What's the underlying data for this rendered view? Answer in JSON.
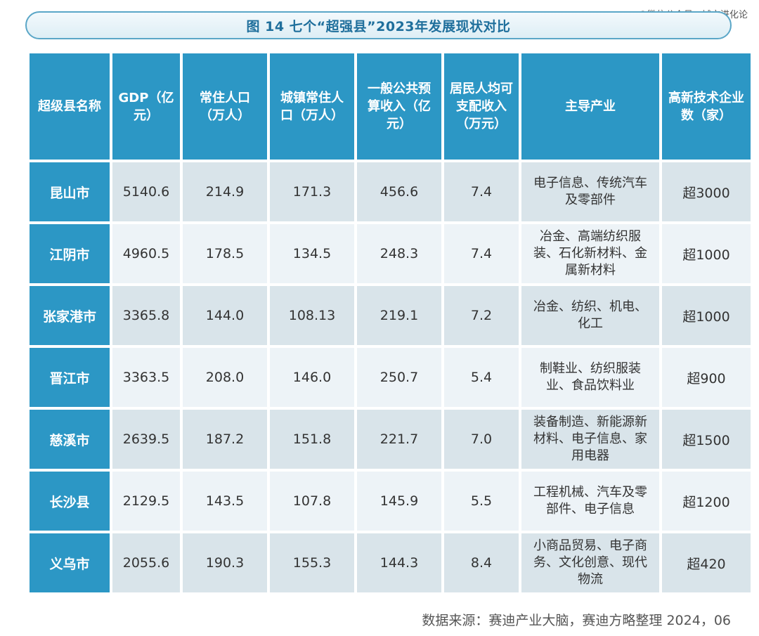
{
  "watermark": "@微信公众号：城市进化论",
  "title": "图 14  七个“超强县”2023年发展现状对比",
  "headers": [
    "超级县名称",
    "GDP（亿元）",
    "常住人口（万人）",
    "城镇常住人口（万人）",
    "一般公共预算收入（亿元）",
    "居民人均可支配收入（万元）",
    "主导产业",
    "高新技术企业数（家）"
  ],
  "rows": [
    {
      "name": "昆山市",
      "gdp": "5140.6",
      "pop": "214.9",
      "urban": "171.3",
      "budget": "456.6",
      "income": "7.4",
      "industry": "电子信息、传统汽车及零部件",
      "hitech": "超3000"
    },
    {
      "name": "江阴市",
      "gdp": "4960.5",
      "pop": "178.5",
      "urban": "134.5",
      "budget": "248.3",
      "income": "7.4",
      "industry": "冶金、高端纺织服装、石化新材料、金属新材料",
      "hitech": "超1000"
    },
    {
      "name": "张家港市",
      "gdp": "3365.8",
      "pop": "144.0",
      "urban": "108.13",
      "budget": "219.1",
      "income": "7.2",
      "industry": "冶金、纺织、机电、化工",
      "hitech": "超1000"
    },
    {
      "name": "晋江市",
      "gdp": "3363.5",
      "pop": "208.0",
      "urban": "146.0",
      "budget": "250.7",
      "income": "5.4",
      "industry": "制鞋业、纺织服装业、食品饮料业",
      "hitech": "超900"
    },
    {
      "name": "慈溪市",
      "gdp": "2639.5",
      "pop": "187.2",
      "urban": "151.8",
      "budget": "221.7",
      "income": "7.0",
      "industry": "装备制造、新能源新材料、电子信息、家用电器",
      "hitech": "超1500"
    },
    {
      "name": "长沙县",
      "gdp": "2129.5",
      "pop": "143.5",
      "urban": "107.8",
      "budget": "145.9",
      "income": "5.5",
      "industry": "工程机械、汽车及零部件、电子信息",
      "hitech": "超1200"
    },
    {
      "name": "义乌市",
      "gdp": "2055.6",
      "pop": "190.3",
      "urban": "155.3",
      "budget": "144.3",
      "income": "8.4",
      "industry": "小商品贸易、电子商务、文化创意、现代物流",
      "hitech": "超420"
    }
  ],
  "source": "数据来源：赛迪产业大脑，赛迪方略整理  2024，06"
}
